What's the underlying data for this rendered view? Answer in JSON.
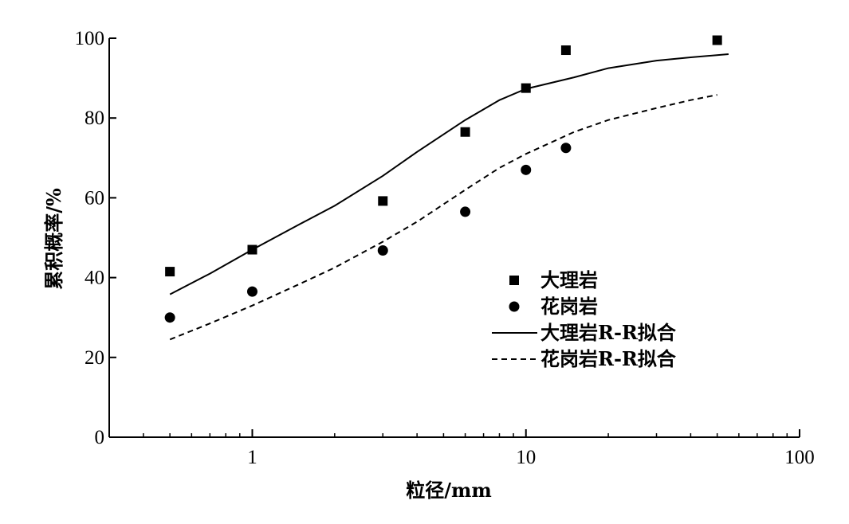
{
  "chart_data": {
    "type": "scatter",
    "xlabel": "粒径/mm",
    "ylabel": "累积概率/%",
    "x_scale": "log",
    "xlim": [
      0.3,
      100
    ],
    "ylim": [
      0,
      100
    ],
    "x_ticks": [
      1,
      10,
      100
    ],
    "x_tick_labels": [
      "1",
      "10",
      "100"
    ],
    "y_ticks": [
      0,
      20,
      40,
      60,
      80,
      100
    ],
    "y_tick_labels": [
      "0",
      "20",
      "40",
      "60",
      "80",
      "100"
    ],
    "grid": false,
    "legend_position": "center-right",
    "series": [
      {
        "name": "大理岩",
        "kind": "points",
        "marker": "square",
        "x": [
          0.5,
          1,
          3,
          6,
          10,
          14,
          50
        ],
        "y": [
          41.5,
          47,
          59.2,
          76.5,
          87.5,
          97,
          99.5
        ]
      },
      {
        "name": "花岗岩",
        "kind": "points",
        "marker": "circle",
        "x": [
          0.5,
          1,
          3,
          6,
          10,
          14
        ],
        "y": [
          30,
          36.5,
          46.8,
          56.5,
          67,
          72.5
        ]
      },
      {
        "name": "大理岩R-R拟合",
        "kind": "line",
        "dash": "solid",
        "x": [
          0.5,
          0.7,
          1,
          1.5,
          2,
          3,
          4,
          6,
          8,
          10,
          15,
          20,
          30,
          40,
          55
        ],
        "y": [
          35.8,
          41,
          47,
          53.5,
          58,
          65.5,
          71.5,
          79.5,
          84.5,
          87.3,
          90.2,
          92.5,
          94.4,
          95.2,
          96
        ]
      },
      {
        "name": "花岗岩R-R拟合",
        "kind": "line",
        "dash": "dashed",
        "x": [
          0.5,
          0.7,
          1,
          1.5,
          2,
          3,
          4,
          6,
          8,
          10,
          15,
          20,
          30,
          40,
          50
        ],
        "y": [
          24.5,
          28.5,
          33,
          38.5,
          42.5,
          49,
          54,
          62,
          67.5,
          71,
          76.5,
          79.5,
          82.5,
          84.5,
          85.8
        ]
      }
    ],
    "colors": {
      "axis": "#000000",
      "marks": "#000000",
      "background": "#ffffff"
    }
  }
}
